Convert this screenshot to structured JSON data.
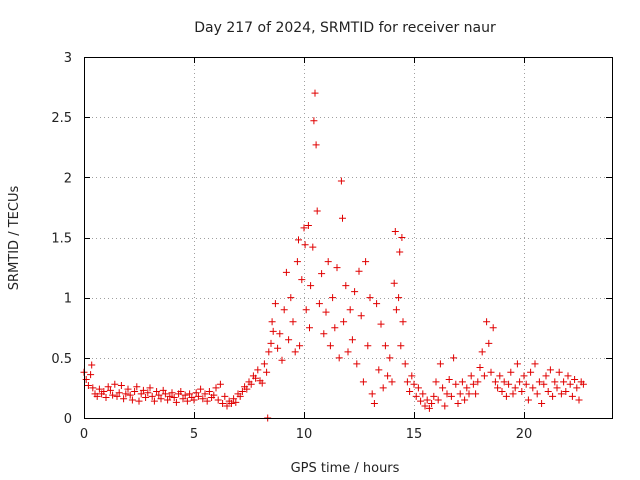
{
  "chart_data": {
    "type": "scatter",
    "title": "Day 217 of 2024, SRMTID for receiver naur",
    "xlabel": "GPS time / hours",
    "ylabel": "SRMTID / TECUs",
    "xlim": [
      0,
      24
    ],
    "ylim": [
      0,
      3
    ],
    "xticks": [
      0,
      5,
      10,
      15,
      20
    ],
    "yticks": [
      0,
      0.5,
      1,
      1.5,
      2,
      2.5,
      3
    ],
    "xtick_labels": [
      "0",
      "5",
      "10",
      "15",
      "20"
    ],
    "ytick_labels": [
      "0",
      "0.5",
      "1",
      "1.5",
      "2",
      "2.5",
      "3"
    ],
    "grid": true,
    "marker": "+",
    "color": "#e00000",
    "series": [
      {
        "name": "SRMTID",
        "points": [
          [
            0.0,
            0.38
          ],
          [
            0.1,
            0.32
          ],
          [
            0.2,
            0.27
          ],
          [
            0.3,
            0.36
          ],
          [
            0.35,
            0.44
          ],
          [
            0.4,
            0.25
          ],
          [
            0.5,
            0.2
          ],
          [
            0.6,
            0.18
          ],
          [
            0.7,
            0.24
          ],
          [
            0.8,
            0.2
          ],
          [
            0.9,
            0.22
          ],
          [
            1.0,
            0.17
          ],
          [
            1.1,
            0.26
          ],
          [
            1.2,
            0.23
          ],
          [
            1.3,
            0.19
          ],
          [
            1.4,
            0.28
          ],
          [
            1.5,
            0.18
          ],
          [
            1.6,
            0.21
          ],
          [
            1.7,
            0.27
          ],
          [
            1.8,
            0.16
          ],
          [
            1.9,
            0.2
          ],
          [
            2.0,
            0.24
          ],
          [
            2.1,
            0.19
          ],
          [
            2.2,
            0.15
          ],
          [
            2.3,
            0.22
          ],
          [
            2.4,
            0.26
          ],
          [
            2.5,
            0.14
          ],
          [
            2.6,
            0.2
          ],
          [
            2.7,
            0.23
          ],
          [
            2.8,
            0.17
          ],
          [
            2.9,
            0.21
          ],
          [
            3.0,
            0.25
          ],
          [
            3.1,
            0.18
          ],
          [
            3.2,
            0.14
          ],
          [
            3.3,
            0.22
          ],
          [
            3.4,
            0.19
          ],
          [
            3.5,
            0.16
          ],
          [
            3.6,
            0.23
          ],
          [
            3.7,
            0.2
          ],
          [
            3.8,
            0.15
          ],
          [
            3.9,
            0.18
          ],
          [
            4.0,
            0.21
          ],
          [
            4.1,
            0.17
          ],
          [
            4.2,
            0.13
          ],
          [
            4.3,
            0.2
          ],
          [
            4.4,
            0.22
          ],
          [
            4.5,
            0.16
          ],
          [
            4.6,
            0.19
          ],
          [
            4.7,
            0.14
          ],
          [
            4.8,
            0.2
          ],
          [
            4.9,
            0.17
          ],
          [
            5.0,
            0.15
          ],
          [
            5.1,
            0.21
          ],
          [
            5.2,
            0.18
          ],
          [
            5.3,
            0.24
          ],
          [
            5.4,
            0.16
          ],
          [
            5.5,
            0.2
          ],
          [
            5.6,
            0.14
          ],
          [
            5.7,
            0.22
          ],
          [
            5.8,
            0.17
          ],
          [
            5.9,
            0.19
          ],
          [
            6.0,
            0.25
          ],
          [
            6.1,
            0.15
          ],
          [
            6.2,
            0.28
          ],
          [
            6.3,
            0.12
          ],
          [
            6.4,
            0.18
          ],
          [
            6.5,
            0.1
          ],
          [
            6.6,
            0.14
          ],
          [
            6.7,
            0.12
          ],
          [
            6.8,
            0.16
          ],
          [
            6.9,
            0.13
          ],
          [
            7.0,
            0.2
          ],
          [
            7.1,
            0.18
          ],
          [
            7.2,
            0.22
          ],
          [
            7.3,
            0.26
          ],
          [
            7.4,
            0.24
          ],
          [
            7.5,
            0.3
          ],
          [
            7.6,
            0.28
          ],
          [
            7.7,
            0.35
          ],
          [
            7.8,
            0.33
          ],
          [
            7.9,
            0.4
          ],
          [
            8.0,
            0.31
          ],
          [
            8.1,
            0.29
          ],
          [
            8.2,
            0.45
          ],
          [
            8.3,
            0.38
          ],
          [
            8.35,
            0.0
          ],
          [
            8.4,
            0.55
          ],
          [
            8.5,
            0.62
          ],
          [
            8.55,
            0.8
          ],
          [
            8.6,
            0.72
          ],
          [
            8.7,
            0.95
          ],
          [
            8.8,
            0.58
          ],
          [
            8.9,
            0.7
          ],
          [
            9.0,
            0.48
          ],
          [
            9.1,
            0.9
          ],
          [
            9.2,
            1.21
          ],
          [
            9.3,
            0.65
          ],
          [
            9.4,
            1.0
          ],
          [
            9.5,
            0.8
          ],
          [
            9.6,
            0.55
          ],
          [
            9.7,
            1.3
          ],
          [
            9.75,
            1.48
          ],
          [
            9.8,
            0.6
          ],
          [
            9.9,
            1.15
          ],
          [
            10.0,
            1.58
          ],
          [
            10.05,
            1.44
          ],
          [
            10.1,
            0.9
          ],
          [
            10.2,
            1.6
          ],
          [
            10.25,
            0.75
          ],
          [
            10.3,
            1.1
          ],
          [
            10.4,
            1.42
          ],
          [
            10.45,
            2.47
          ],
          [
            10.5,
            2.7
          ],
          [
            10.55,
            2.27
          ],
          [
            10.6,
            1.72
          ],
          [
            10.7,
            0.95
          ],
          [
            10.8,
            1.2
          ],
          [
            10.9,
            0.7
          ],
          [
            11.0,
            0.88
          ],
          [
            11.1,
            1.3
          ],
          [
            11.2,
            0.6
          ],
          [
            11.3,
            1.0
          ],
          [
            11.4,
            0.75
          ],
          [
            11.5,
            1.25
          ],
          [
            11.6,
            0.5
          ],
          [
            11.7,
            1.97
          ],
          [
            11.75,
            1.66
          ],
          [
            11.8,
            0.8
          ],
          [
            11.9,
            1.1
          ],
          [
            12.0,
            0.55
          ],
          [
            12.1,
            0.9
          ],
          [
            12.2,
            0.65
          ],
          [
            12.3,
            1.05
          ],
          [
            12.4,
            0.45
          ],
          [
            12.5,
            1.22
          ],
          [
            12.6,
            0.85
          ],
          [
            12.7,
            0.3
          ],
          [
            12.8,
            1.3
          ],
          [
            12.9,
            0.6
          ],
          [
            13.0,
            1.0
          ],
          [
            13.1,
            0.2
          ],
          [
            13.2,
            0.12
          ],
          [
            13.3,
            0.95
          ],
          [
            13.4,
            0.4
          ],
          [
            13.5,
            0.78
          ],
          [
            13.6,
            0.25
          ],
          [
            13.7,
            0.6
          ],
          [
            13.8,
            0.35
          ],
          [
            13.9,
            0.5
          ],
          [
            14.0,
            0.3
          ],
          [
            14.1,
            1.12
          ],
          [
            14.15,
            1.55
          ],
          [
            14.2,
            0.9
          ],
          [
            14.3,
            1.0
          ],
          [
            14.35,
            1.38
          ],
          [
            14.4,
            0.6
          ],
          [
            14.45,
            1.5
          ],
          [
            14.5,
            0.8
          ],
          [
            14.6,
            0.45
          ],
          [
            14.7,
            0.3
          ],
          [
            14.8,
            0.22
          ],
          [
            14.9,
            0.35
          ],
          [
            15.0,
            0.28
          ],
          [
            15.1,
            0.18
          ],
          [
            15.2,
            0.25
          ],
          [
            15.3,
            0.14
          ],
          [
            15.4,
            0.2
          ],
          [
            15.5,
            0.1
          ],
          [
            15.6,
            0.15
          ],
          [
            15.7,
            0.08
          ],
          [
            15.8,
            0.12
          ],
          [
            15.9,
            0.18
          ],
          [
            16.0,
            0.3
          ],
          [
            16.1,
            0.15
          ],
          [
            16.2,
            0.45
          ],
          [
            16.3,
            0.25
          ],
          [
            16.4,
            0.1
          ],
          [
            16.5,
            0.2
          ],
          [
            16.6,
            0.32
          ],
          [
            16.7,
            0.18
          ],
          [
            16.8,
            0.5
          ],
          [
            16.9,
            0.28
          ],
          [
            17.0,
            0.12
          ],
          [
            17.1,
            0.2
          ],
          [
            17.2,
            0.3
          ],
          [
            17.3,
            0.15
          ],
          [
            17.4,
            0.25
          ],
          [
            17.5,
            0.2
          ],
          [
            17.6,
            0.35
          ],
          [
            17.7,
            0.28
          ],
          [
            17.8,
            0.2
          ],
          [
            17.9,
            0.3
          ],
          [
            18.0,
            0.42
          ],
          [
            18.1,
            0.55
          ],
          [
            18.2,
            0.35
          ],
          [
            18.3,
            0.8
          ],
          [
            18.4,
            0.62
          ],
          [
            18.5,
            0.38
          ],
          [
            18.6,
            0.75
          ],
          [
            18.7,
            0.3
          ],
          [
            18.8,
            0.25
          ],
          [
            18.9,
            0.35
          ],
          [
            19.0,
            0.22
          ],
          [
            19.1,
            0.3
          ],
          [
            19.2,
            0.18
          ],
          [
            19.3,
            0.28
          ],
          [
            19.4,
            0.38
          ],
          [
            19.5,
            0.2
          ],
          [
            19.6,
            0.25
          ],
          [
            19.7,
            0.45
          ],
          [
            19.8,
            0.3
          ],
          [
            19.9,
            0.22
          ],
          [
            20.0,
            0.35
          ],
          [
            20.1,
            0.28
          ],
          [
            20.2,
            0.15
          ],
          [
            20.3,
            0.38
          ],
          [
            20.4,
            0.25
          ],
          [
            20.5,
            0.45
          ],
          [
            20.6,
            0.2
          ],
          [
            20.7,
            0.3
          ],
          [
            20.8,
            0.12
          ],
          [
            20.9,
            0.28
          ],
          [
            21.0,
            0.35
          ],
          [
            21.1,
            0.22
          ],
          [
            21.2,
            0.4
          ],
          [
            21.3,
            0.18
          ],
          [
            21.4,
            0.3
          ],
          [
            21.5,
            0.25
          ],
          [
            21.6,
            0.38
          ],
          [
            21.7,
            0.2
          ],
          [
            21.8,
            0.3
          ],
          [
            21.9,
            0.22
          ],
          [
            22.0,
            0.35
          ],
          [
            22.1,
            0.28
          ],
          [
            22.2,
            0.18
          ],
          [
            22.3,
            0.32
          ],
          [
            22.4,
            0.25
          ],
          [
            22.5,
            0.15
          ],
          [
            22.6,
            0.3
          ],
          [
            22.7,
            0.28
          ]
        ]
      }
    ]
  }
}
